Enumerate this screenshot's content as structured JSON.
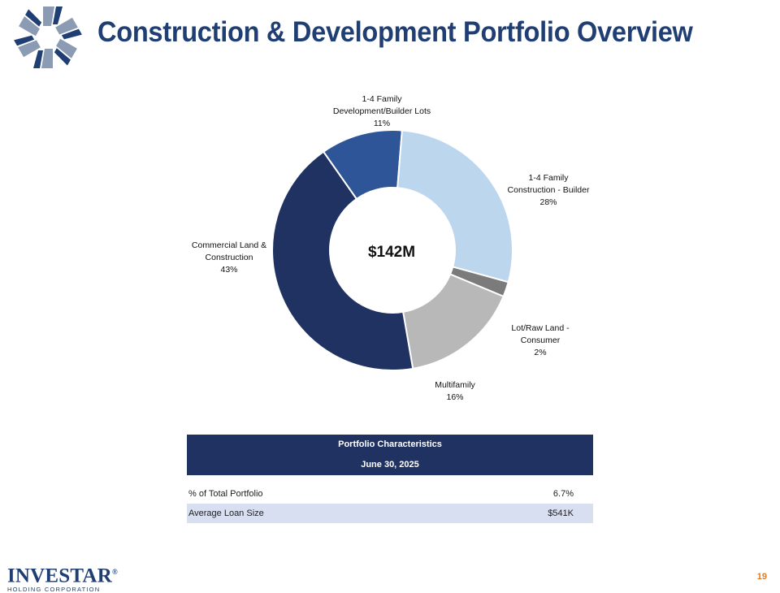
{
  "title": "Construction & Development Portfolio Overview",
  "chart_data": {
    "type": "pie",
    "style": "donut",
    "center_label": "$142M",
    "slices": [
      {
        "label_lines": [
          "1-4 Family",
          "Development/Builder  Lots"
        ],
        "pct_text": "11%",
        "value": 11,
        "color": "#2d5597"
      },
      {
        "label_lines": [
          "1-4 Family",
          "Construction  - Builder"
        ],
        "pct_text": "28%",
        "value": 28,
        "color": "#bcd6ee"
      },
      {
        "label_lines": [
          "Lot/Raw Land -",
          "Consumer"
        ],
        "pct_text": "2%",
        "value": 2,
        "color": "#7b7b7b"
      },
      {
        "label_lines": [
          "Multifamily"
        ],
        "pct_text": "16%",
        "value": 16,
        "color": "#b8b8b8"
      },
      {
        "label_lines": [
          "Commercial Land  &",
          "Construction"
        ],
        "pct_text": "43%",
        "value": 43,
        "color": "#1f3262"
      }
    ]
  },
  "table": {
    "header_title": "Portfolio Characteristics",
    "header_date": "June 30, 2025",
    "rows": [
      {
        "label": "% of Total Portfolio",
        "value": "6.7%"
      },
      {
        "label": "Average Loan Size",
        "value": "$541K"
      }
    ]
  },
  "footer": {
    "brand": "INVESTAR",
    "brand_mark": "®",
    "subtitle": "HOLDING CORPORATION"
  },
  "page_number": "19",
  "colors": {
    "brand_navy": "#1f3e74",
    "page_number": "#e07b20"
  }
}
